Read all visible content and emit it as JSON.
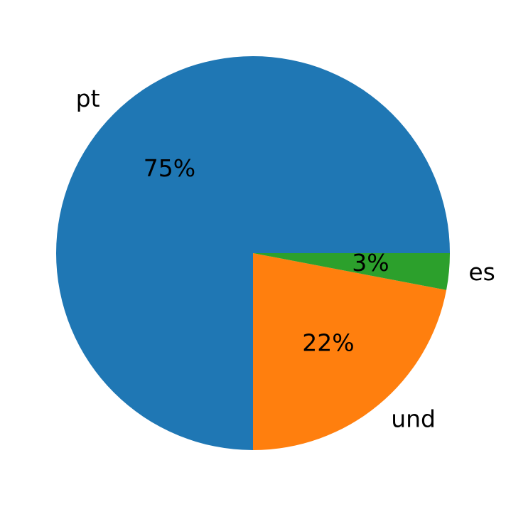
{
  "chart_data": {
    "type": "pie",
    "categories": [
      "pt",
      "und",
      "es"
    ],
    "values": [
      75,
      22,
      3
    ],
    "value_labels": [
      "75%",
      "22%",
      "3%"
    ],
    "colors": [
      "#1f77b4",
      "#ff7f0e",
      "#2ca02c"
    ]
  }
}
